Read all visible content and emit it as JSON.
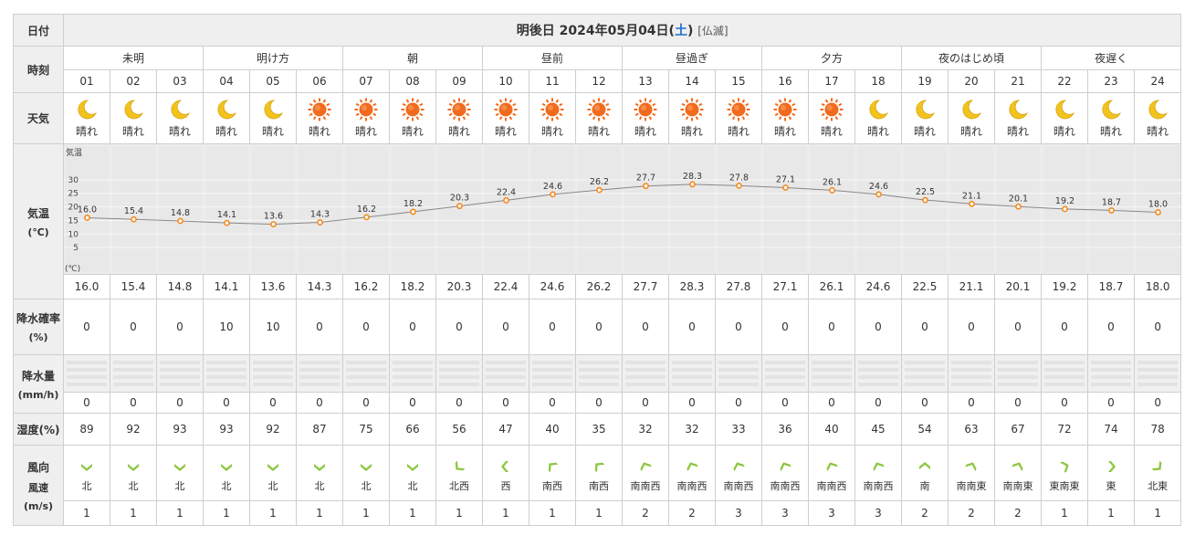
{
  "labels": {
    "date": "日付",
    "time": "時刻",
    "weather": "天気",
    "temp": "気温",
    "temp_unit": "(℃)",
    "pop": "降水確率",
    "pop_unit": "(%)",
    "rain": "降水量",
    "rain_unit": "(mm/h)",
    "humidity": "湿度(%)",
    "wind_dir": "風向",
    "wind_speed": "風速",
    "wind_unit": "(m/s)"
  },
  "header": {
    "prefix": "明後日 2024年05月04日(",
    "weekday": "土",
    "suffix": ")",
    "rokuyo": "[仏滅]"
  },
  "periods": [
    "未明",
    "明け方",
    "朝",
    "昼前",
    "昼過ぎ",
    "夕方",
    "夜のはじめ頃",
    "夜遅く"
  ],
  "hours": [
    "01",
    "02",
    "03",
    "04",
    "05",
    "06",
    "07",
    "08",
    "09",
    "10",
    "11",
    "12",
    "13",
    "14",
    "15",
    "16",
    "17",
    "18",
    "19",
    "20",
    "21",
    "22",
    "23",
    "24"
  ],
  "weather": [
    {
      "icon": "moon-icon",
      "text": "晴れ"
    },
    {
      "icon": "moon-icon",
      "text": "晴れ"
    },
    {
      "icon": "moon-icon",
      "text": "晴れ"
    },
    {
      "icon": "moon-icon",
      "text": "晴れ"
    },
    {
      "icon": "moon-icon",
      "text": "晴れ"
    },
    {
      "icon": "sun-icon",
      "text": "晴れ"
    },
    {
      "icon": "sun-icon",
      "text": "晴れ"
    },
    {
      "icon": "sun-icon",
      "text": "晴れ"
    },
    {
      "icon": "sun-icon",
      "text": "晴れ"
    },
    {
      "icon": "sun-icon",
      "text": "晴れ"
    },
    {
      "icon": "sun-icon",
      "text": "晴れ"
    },
    {
      "icon": "sun-icon",
      "text": "晴れ"
    },
    {
      "icon": "sun-icon",
      "text": "晴れ"
    },
    {
      "icon": "sun-icon",
      "text": "晴れ"
    },
    {
      "icon": "sun-icon",
      "text": "晴れ"
    },
    {
      "icon": "sun-icon",
      "text": "晴れ"
    },
    {
      "icon": "sun-icon",
      "text": "晴れ"
    },
    {
      "icon": "moon-icon",
      "text": "晴れ"
    },
    {
      "icon": "moon-icon",
      "text": "晴れ"
    },
    {
      "icon": "moon-icon",
      "text": "晴れ"
    },
    {
      "icon": "moon-icon",
      "text": "晴れ"
    },
    {
      "icon": "moon-icon",
      "text": "晴れ"
    },
    {
      "icon": "moon-icon",
      "text": "晴れ"
    },
    {
      "icon": "moon-icon",
      "text": "晴れ"
    }
  ],
  "chart_data": {
    "type": "line",
    "title": "",
    "ylabel": "気温",
    "yunit": "(℃)",
    "ylim": [
      0,
      35
    ],
    "yticks": [
      5,
      10,
      15,
      20,
      25,
      30
    ],
    "grid": true,
    "x": [
      "01",
      "02",
      "03",
      "04",
      "05",
      "06",
      "07",
      "08",
      "09",
      "10",
      "11",
      "12",
      "13",
      "14",
      "15",
      "16",
      "17",
      "18",
      "19",
      "20",
      "21",
      "22",
      "23",
      "24"
    ],
    "values": [
      16.0,
      15.4,
      14.8,
      14.1,
      13.6,
      14.3,
      16.2,
      18.2,
      20.3,
      22.4,
      24.6,
      26.2,
      27.7,
      28.3,
      27.8,
      27.1,
      26.1,
      24.6,
      22.5,
      21.1,
      20.1,
      19.2,
      18.7,
      18.0
    ],
    "value_labels": [
      "16.0",
      "15.4",
      "14.8",
      "14.1",
      "13.6",
      "14.3",
      "16.2",
      "18.2",
      "20.3",
      "22.4",
      "24.6",
      "26.2",
      "27.7",
      "28.3",
      "27.8",
      "27.1",
      "26.1",
      "24.6",
      "22.5",
      "21.1",
      "20.1",
      "19.2",
      "18.7",
      "18.0"
    ]
  },
  "temps": [
    "16.0",
    "15.4",
    "14.8",
    "14.1",
    "13.6",
    "14.3",
    "16.2",
    "18.2",
    "20.3",
    "22.4",
    "24.6",
    "26.2",
    "27.7",
    "28.3",
    "27.8",
    "27.1",
    "26.1",
    "24.6",
    "22.5",
    "21.1",
    "20.1",
    "19.2",
    "18.7",
    "18.0"
  ],
  "pop": [
    "0",
    "0",
    "0",
    "10",
    "10",
    "0",
    "0",
    "0",
    "0",
    "0",
    "0",
    "0",
    "0",
    "0",
    "0",
    "0",
    "0",
    "0",
    "0",
    "0",
    "0",
    "0",
    "0",
    "0"
  ],
  "rain": [
    "0",
    "0",
    "0",
    "0",
    "0",
    "0",
    "0",
    "0",
    "0",
    "0",
    "0",
    "0",
    "0",
    "0",
    "0",
    "0",
    "0",
    "0",
    "0",
    "0",
    "0",
    "0",
    "0",
    "0"
  ],
  "humidity": [
    "89",
    "92",
    "93",
    "93",
    "92",
    "87",
    "75",
    "66",
    "56",
    "47",
    "40",
    "35",
    "32",
    "32",
    "33",
    "36",
    "40",
    "45",
    "54",
    "63",
    "67",
    "72",
    "74",
    "78"
  ],
  "wind_dir": [
    "北",
    "北",
    "北",
    "北",
    "北",
    "北",
    "北",
    "北",
    "北西",
    "西",
    "南西",
    "南西",
    "南南西",
    "南南西",
    "南南西",
    "南南西",
    "南南西",
    "南南西",
    "南",
    "南南東",
    "南南東",
    "東南東",
    "東",
    "北東"
  ],
  "wind_rot": [
    0,
    0,
    0,
    0,
    0,
    0,
    0,
    0,
    45,
    90,
    135,
    135,
    157.5,
    157.5,
    157.5,
    157.5,
    157.5,
    157.5,
    180,
    202.5,
    202.5,
    247.5,
    270,
    315
  ],
  "wind_speed": [
    "1",
    "1",
    "1",
    "1",
    "1",
    "1",
    "1",
    "1",
    "1",
    "1",
    "1",
    "1",
    "2",
    "2",
    "3",
    "3",
    "3",
    "3",
    "2",
    "2",
    "2",
    "1",
    "1",
    "1"
  ],
  "colors": {
    "sun": "#f26b1d",
    "moon": "#f2c21d",
    "arrow": "#8cc63f",
    "line": "#888888",
    "point": "#f28a1d",
    "weekday": "#1e6fd0"
  }
}
